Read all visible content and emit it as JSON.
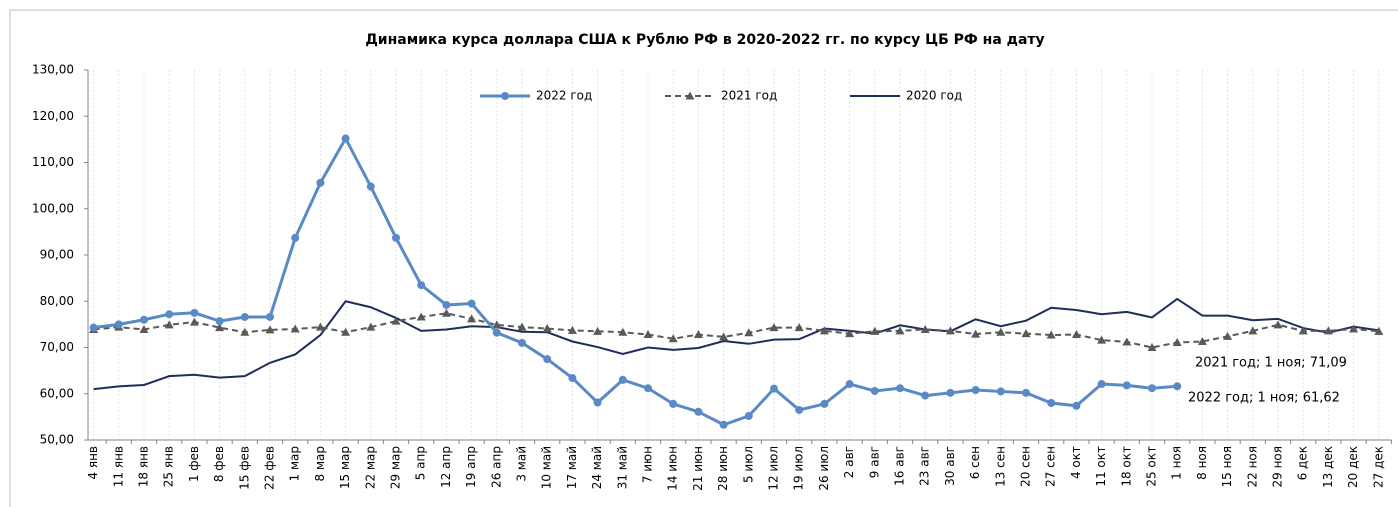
{
  "chart_data": {
    "type": "line",
    "title": "Динамика курса доллара США к Рублю РФ в 2020-2022 гг. по курсу ЦБ РФ на дату",
    "categories": [
      "4 янв",
      "11 янв",
      "18 янв",
      "25 янв",
      "1 фев",
      "8 фев",
      "15 фев",
      "22 фев",
      "1 мар",
      "8 мар",
      "15 мар",
      "22 мар",
      "29 мар",
      "5 апр",
      "12 апр",
      "19 апр",
      "26 апр",
      "3 май",
      "10 май",
      "17 май",
      "24 май",
      "31 май",
      "7 июн",
      "14 июн",
      "21 июн",
      "28 июн",
      "5 июл",
      "12 июл",
      "19 июл",
      "26 июл",
      "2 авг",
      "9 авг",
      "16 авг",
      "23 авг",
      "30 авг",
      "6 сен",
      "13 сен",
      "20 сен",
      "27 сен",
      "4 окт",
      "11 окт",
      "18 окт",
      "25 окт",
      "1 ноя",
      "8 ноя",
      "15 ноя",
      "22 ноя",
      "29 ноя",
      "6 дек",
      "13 дек",
      "20 дек",
      "27 дек"
    ],
    "series": [
      {
        "name": "2022 год",
        "color": "#5a8ac6",
        "marker": "circle",
        "dashed": false,
        "values": [
          74.3,
          75.0,
          76.0,
          77.2,
          77.5,
          75.7,
          76.6,
          76.6,
          93.7,
          105.6,
          115.2,
          104.8,
          93.7,
          83.5,
          79.2,
          79.5,
          73.2,
          71.0,
          67.5,
          63.4,
          58.1,
          63.0,
          61.2,
          57.8,
          56.1,
          53.3,
          55.2,
          61.1,
          56.5,
          57.8,
          62.1,
          60.6,
          61.2,
          59.6,
          60.2,
          60.8,
          60.5,
          60.2,
          58.0,
          57.4,
          62.1,
          61.8,
          61.2,
          61.62,
          null,
          null,
          null,
          null,
          null,
          null,
          null,
          null
        ]
      },
      {
        "name": "2021 год",
        "color": "#595959",
        "marker": "triangle",
        "dashed": true,
        "values": [
          73.9,
          74.4,
          73.9,
          74.9,
          75.5,
          74.3,
          73.3,
          73.8,
          74.0,
          74.4,
          73.3,
          74.4,
          75.7,
          76.6,
          77.4,
          76.2,
          74.9,
          74.4,
          74.1,
          73.7,
          73.5,
          73.3,
          72.8,
          71.9,
          72.8,
          72.3,
          73.2,
          74.3,
          74.3,
          73.6,
          73.0,
          73.5,
          73.6,
          73.9,
          73.6,
          72.9,
          73.3,
          73.0,
          72.7,
          72.8,
          71.6,
          71.2,
          70.0,
          71.09,
          71.3,
          72.4,
          73.6,
          74.9,
          73.6,
          73.6,
          74.0,
          73.5
        ]
      },
      {
        "name": "2020 год",
        "color": "#1f2d5c",
        "marker": "none",
        "dashed": false,
        "values": [
          61.0,
          61.6,
          61.9,
          63.8,
          64.1,
          63.5,
          63.8,
          66.7,
          68.5,
          72.7,
          80.0,
          78.7,
          76.4,
          73.6,
          73.9,
          74.6,
          74.4,
          73.4,
          73.3,
          71.3,
          70.1,
          68.6,
          70.0,
          69.5,
          69.9,
          71.4,
          70.8,
          71.7,
          71.8,
          74.1,
          73.6,
          73.0,
          74.8,
          73.9,
          73.5,
          76.1,
          74.6,
          75.8,
          78.6,
          78.1,
          77.2,
          77.7,
          76.5,
          80.5,
          76.9,
          76.9,
          75.9,
          76.2,
          74.2,
          73.2,
          74.5,
          73.7
        ]
      }
    ],
    "ylim": [
      50,
      130
    ],
    "yticks": [
      {
        "value": 50,
        "label": "50,00"
      },
      {
        "value": 60,
        "label": "60,00"
      },
      {
        "value": 70,
        "label": "70,00"
      },
      {
        "value": 80,
        "label": "80,00"
      },
      {
        "value": 90,
        "label": "90,00"
      },
      {
        "value": 100,
        "label": "100,00"
      },
      {
        "value": 110,
        "label": "110,00"
      },
      {
        "value": 120,
        "label": "120,00"
      },
      {
        "value": 130,
        "label": "130,00"
      }
    ],
    "annotations": [
      "2021 год; 1 ноя; 71,09",
      "2022 год; 1 ноя; 61,62"
    ],
    "legend": "top"
  }
}
